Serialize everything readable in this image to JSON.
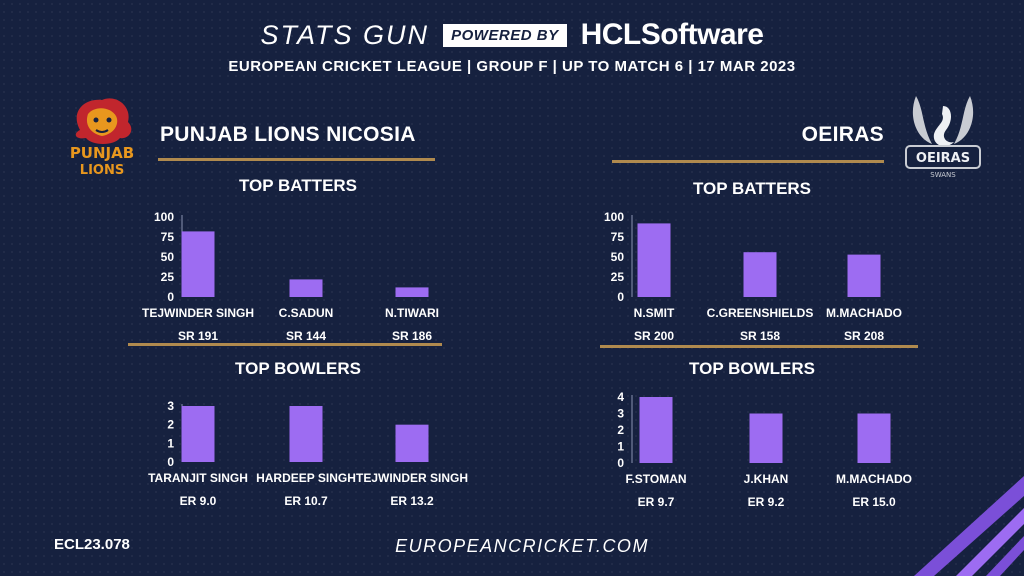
{
  "header": {
    "brand": "STATS GUN",
    "powered_by": "POWERED BY",
    "sponsor": "HCLSoftware",
    "subtitle": "EUROPEAN CRICKET LEAGUE | GROUP F | UP TO MATCH 6 | 17 MAR 2023"
  },
  "teams": {
    "left": {
      "name": "PUNJAB LIONS NICOSIA",
      "logo_line1": "PUNJAB",
      "logo_line2": "LIONS",
      "color": "#e8971e"
    },
    "right": {
      "name": "OEIRAS",
      "logo_line1": "OEIRAS",
      "logo_line2": "SWANS",
      "color": "#c9ccd3"
    }
  },
  "sections": {
    "batters_title": "TOP BATTERS",
    "bowlers_title": "TOP BOWLERS"
  },
  "chart_data": [
    {
      "type": "bar",
      "team": "PUNJAB LIONS NICOSIA",
      "title": "TOP BATTERS",
      "categories": [
        "TEJWINDER SINGH",
        "C.SADUN",
        "N.TIWARI"
      ],
      "values": [
        82,
        22,
        12
      ],
      "secondary_labels": [
        "SR 191",
        "SR 144",
        "SR 186"
      ],
      "yticks": [
        0,
        25,
        50,
        75,
        100
      ],
      "ylim": [
        0,
        100
      ],
      "bar_color": "#9d6cf2"
    },
    {
      "type": "bar",
      "team": "PUNJAB LIONS NICOSIA",
      "title": "TOP BOWLERS",
      "categories": [
        "TARANJIT SINGH",
        "HARDEEP SINGH",
        "TEJWINDER SINGH"
      ],
      "values": [
        3,
        3,
        2
      ],
      "secondary_labels": [
        "ER 9.0",
        "ER 10.7",
        "ER 13.2"
      ],
      "yticks": [
        0,
        1,
        2,
        3
      ],
      "ylim": [
        0,
        3
      ],
      "bar_color": "#9d6cf2"
    },
    {
      "type": "bar",
      "team": "OEIRAS",
      "title": "TOP BATTERS",
      "categories": [
        "N.SMIT",
        "C.GREENSHIELDS",
        "M.MACHADO"
      ],
      "values": [
        92,
        56,
        53
      ],
      "secondary_labels": [
        "SR 200",
        "SR 158",
        "SR 208"
      ],
      "yticks": [
        0,
        25,
        50,
        75,
        100
      ],
      "ylim": [
        0,
        100
      ],
      "bar_color": "#9d6cf2"
    },
    {
      "type": "bar",
      "team": "OEIRAS",
      "title": "TOP BOWLERS",
      "categories": [
        "F.STOMAN",
        "J.KHAN",
        "M.MACHADO"
      ],
      "values": [
        4,
        3,
        3
      ],
      "secondary_labels": [
        "ER  9.7",
        "ER 9.2",
        "ER 15.0"
      ],
      "yticks": [
        0,
        1,
        2,
        3,
        4
      ],
      "ylim": [
        0,
        4
      ],
      "bar_color": "#9d6cf2"
    }
  ],
  "footer": {
    "code": "ECL23.078",
    "url": "EUROPEANCRICKET.COM"
  }
}
